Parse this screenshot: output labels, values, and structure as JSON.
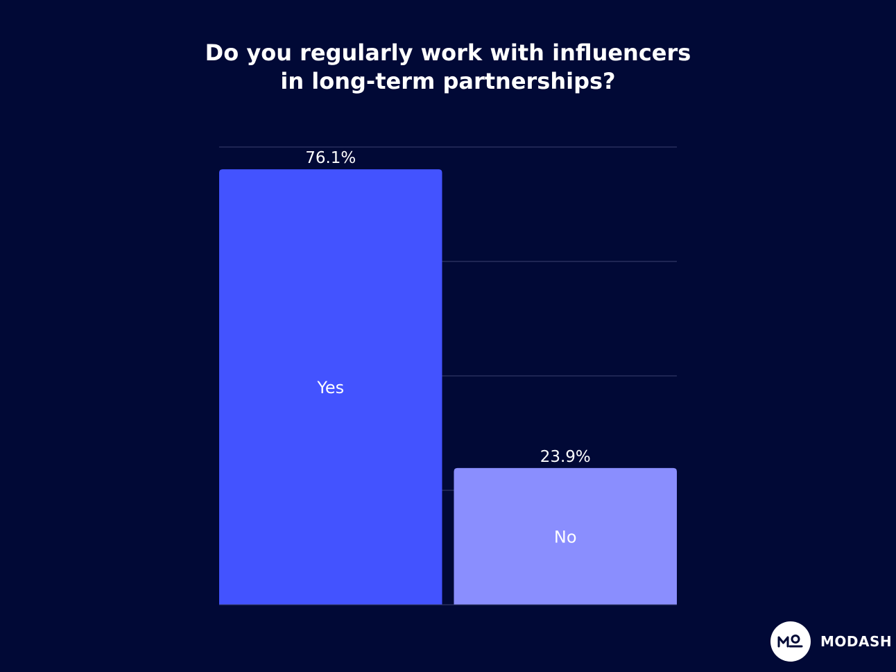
{
  "brand": {
    "name": "MODASH",
    "logo_monogram": "MO"
  },
  "colors": {
    "background": "#010936",
    "bar_yes": "#4353ff",
    "bar_no": "#8a8efe",
    "grid": "#3a4170",
    "text": "#ffffff"
  },
  "chart_data": {
    "type": "bar",
    "title": "Do you regularly work with influencers in long-term partnerships?",
    "title_lines": [
      "Do you regularly work with influencers",
      "in long-term partnerships?"
    ],
    "categories": [
      "Yes",
      "No"
    ],
    "values": [
      76.1,
      23.9
    ],
    "value_labels": [
      "76.1%",
      "23.9%"
    ],
    "unit": "%",
    "xlabel": "",
    "ylabel": "",
    "ylim": [
      0,
      80
    ],
    "grid": true,
    "legend": "none",
    "category_labels_inside_bars": true
  }
}
